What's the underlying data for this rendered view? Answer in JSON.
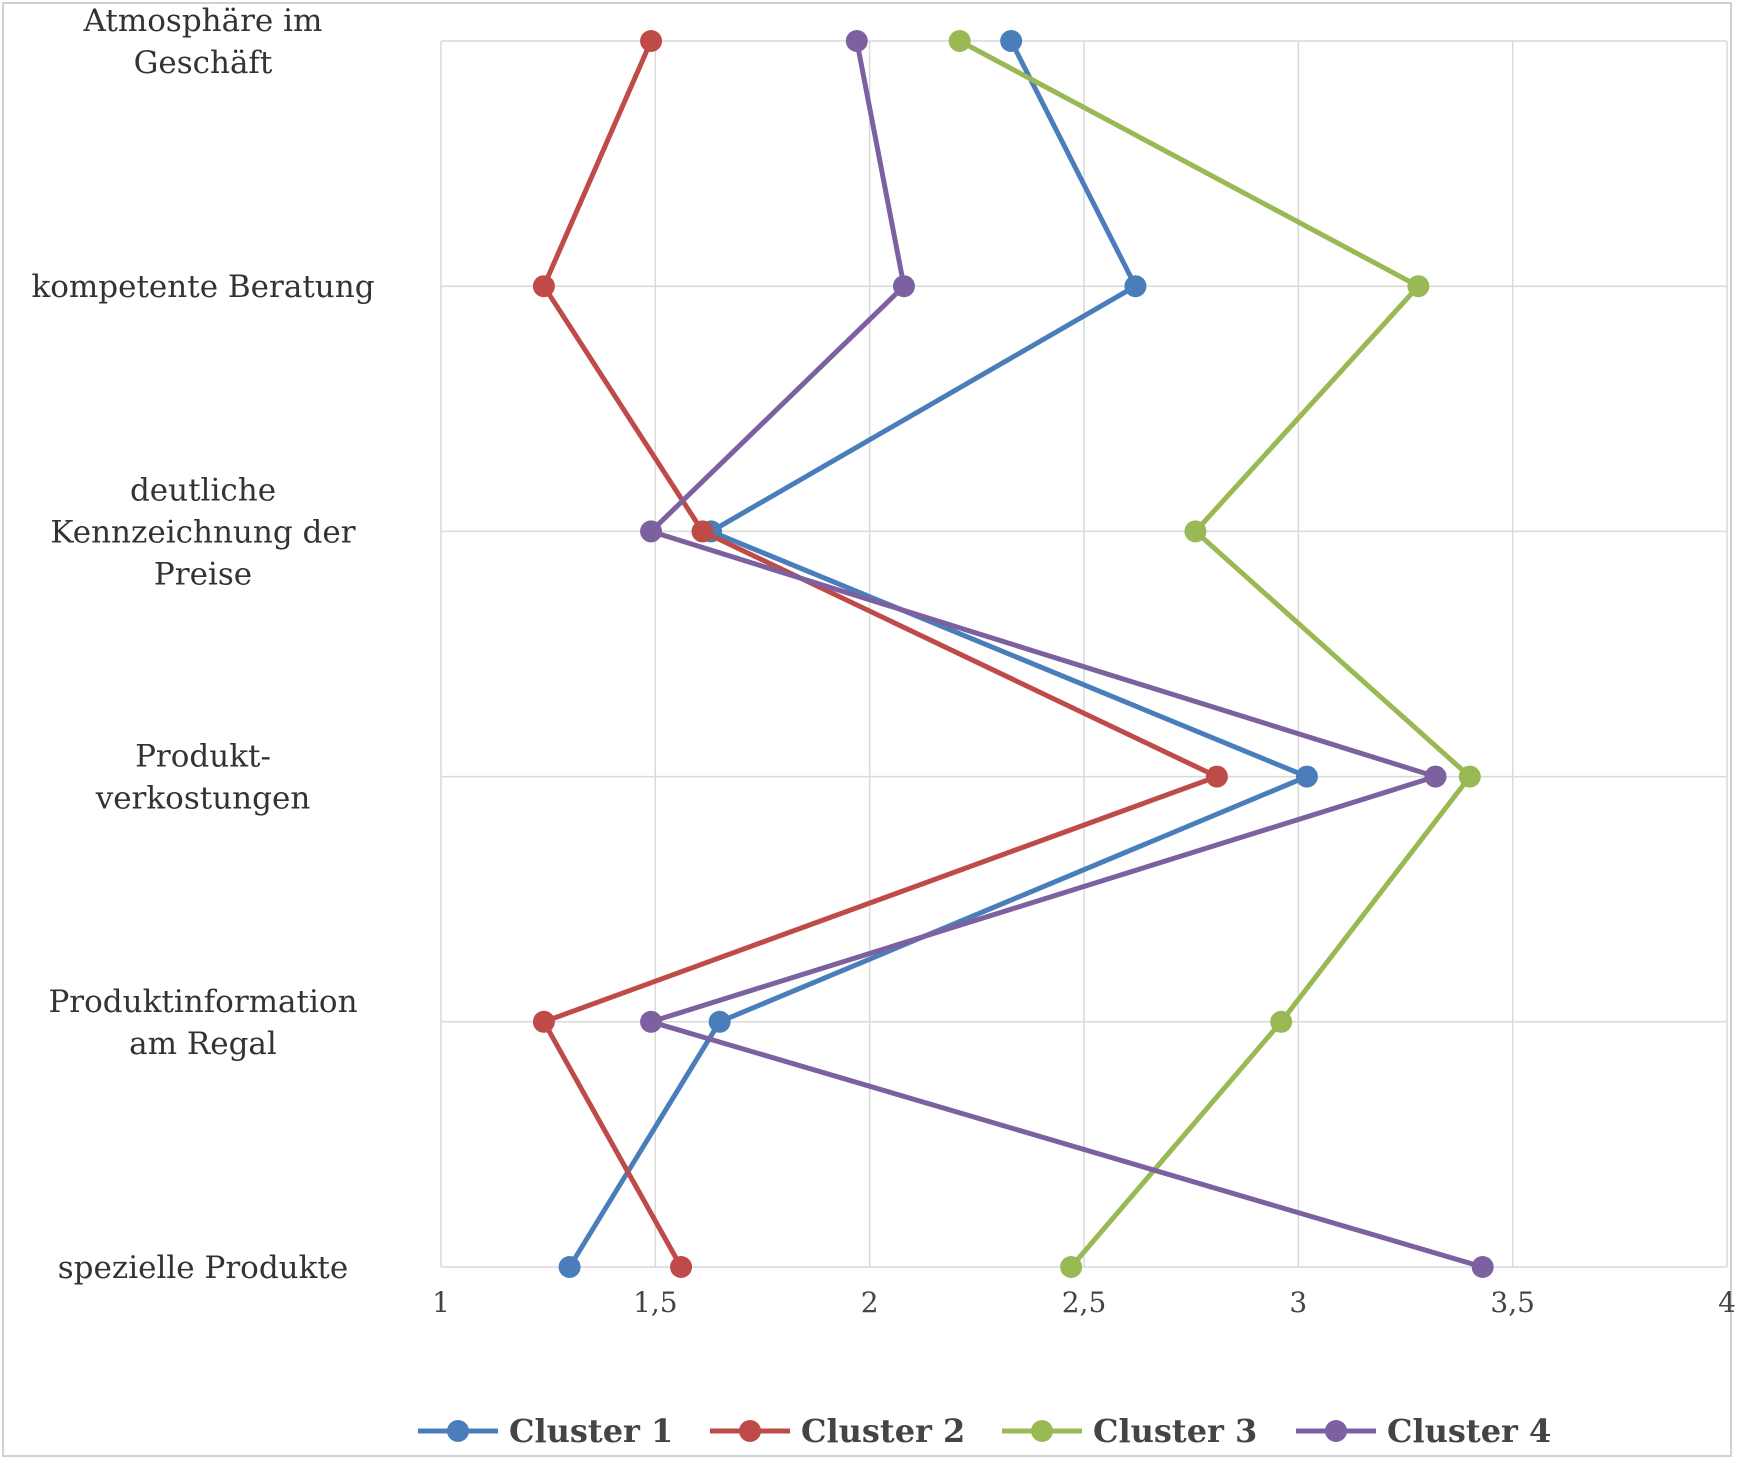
{
  "chart_data": {
    "type": "line",
    "orientation": "horizontal-values",
    "title": "",
    "xlabel": "",
    "ylabel": "",
    "xlim": [
      1,
      4
    ],
    "x_ticks": [
      1,
      1.5,
      2,
      2.5,
      3,
      3.5,
      4
    ],
    "x_tick_labels": [
      "1",
      "1,5",
      "2",
      "2,5",
      "3",
      "3,5",
      "4"
    ],
    "grid": true,
    "legend_position": "bottom",
    "categories": [
      [
        "Atmosphäre im",
        "Geschäft"
      ],
      [
        "kompetente Beratung"
      ],
      [
        "deutliche",
        "Kennzeichnung  der",
        "Preise"
      ],
      [
        "Produkt-",
        "verkostungen"
      ],
      [
        "Produktinformation",
        "am Regal"
      ],
      [
        "spezielle  Produkte"
      ]
    ],
    "series": [
      {
        "name": "Cluster 1",
        "color": "#4a7ebb",
        "values": [
          2.33,
          2.62,
          1.63,
          3.02,
          1.65,
          1.3
        ]
      },
      {
        "name": "Cluster 2",
        "color": "#be4b48",
        "values": [
          1.49,
          1.24,
          1.61,
          2.81,
          1.24,
          1.56
        ]
      },
      {
        "name": "Cluster 3",
        "color": "#98b954",
        "values": [
          2.21,
          3.28,
          2.76,
          3.4,
          2.96,
          2.47
        ]
      },
      {
        "name": "Cluster 4",
        "color": "#7d60a0",
        "values": [
          1.97,
          2.08,
          1.49,
          3.32,
          1.49,
          3.43
        ]
      }
    ]
  }
}
